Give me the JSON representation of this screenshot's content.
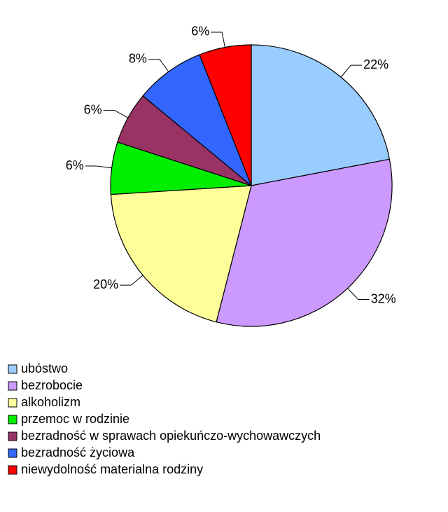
{
  "chart_data": {
    "type": "pie",
    "categories": [
      "ubóstwo",
      "bezrobocie",
      "alkoholizm",
      "przemoc w rodzinie",
      "bezradność w sprawach opiekuńczo-wychowawczych",
      "bezradność życiowa",
      "niewydolność materialna rodziny"
    ],
    "values": [
      22,
      32,
      20,
      6,
      6,
      8,
      6
    ],
    "value_labels": [
      "22%",
      "32%",
      "20%",
      "6%",
      "6%",
      "8%",
      "6%"
    ],
    "colors": [
      "#99ccff",
      "#cc99ff",
      "#ffff99",
      "#00ee00",
      "#993366",
      "#3366ff",
      "#ff0000"
    ]
  }
}
